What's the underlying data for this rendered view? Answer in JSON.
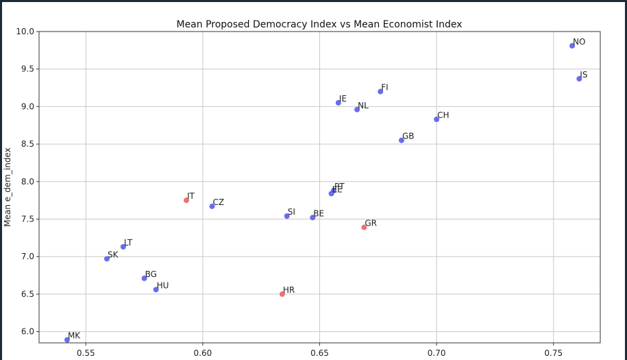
{
  "chart_data": {
    "type": "scatter",
    "title": "Mean Proposed Democracy Index vs Mean Economist Index",
    "xlabel": "",
    "ylabel": "Mean e_dem_index",
    "xlim": [
      0.53,
      0.77
    ],
    "ylim": [
      5.85,
      10.0
    ],
    "xticks": [
      "0.55",
      "0.60",
      "0.65",
      "0.70",
      "0.75"
    ],
    "yticks": [
      "6.0",
      "6.5",
      "7.0",
      "7.5",
      "8.0",
      "8.5",
      "9.0",
      "9.5",
      "10.0"
    ],
    "grid": true,
    "colors": {
      "blue": "#6b6bf0",
      "red": "#f07070"
    },
    "points": [
      {
        "label": "NO",
        "x": 0.758,
        "y": 9.81,
        "color": "blue"
      },
      {
        "label": "IS",
        "x": 0.761,
        "y": 9.37,
        "color": "blue"
      },
      {
        "label": "FI",
        "x": 0.676,
        "y": 9.2,
        "color": "blue"
      },
      {
        "label": "IE",
        "x": 0.658,
        "y": 9.05,
        "color": "blue"
      },
      {
        "label": "NL",
        "x": 0.666,
        "y": 8.96,
        "color": "blue"
      },
      {
        "label": "CH",
        "x": 0.7,
        "y": 8.83,
        "color": "blue"
      },
      {
        "label": "GB",
        "x": 0.685,
        "y": 8.55,
        "color": "blue"
      },
      {
        "label": "PT",
        "x": 0.656,
        "y": 7.88,
        "color": "blue"
      },
      {
        "label": "EE",
        "x": 0.655,
        "y": 7.84,
        "color": "blue"
      },
      {
        "label": "IT",
        "x": 0.593,
        "y": 7.75,
        "color": "red"
      },
      {
        "label": "CZ",
        "x": 0.604,
        "y": 7.67,
        "color": "blue"
      },
      {
        "label": "SI",
        "x": 0.636,
        "y": 7.54,
        "color": "blue"
      },
      {
        "label": "BE",
        "x": 0.647,
        "y": 7.52,
        "color": "blue"
      },
      {
        "label": "GR",
        "x": 0.669,
        "y": 7.39,
        "color": "red"
      },
      {
        "label": "LT",
        "x": 0.566,
        "y": 7.13,
        "color": "blue"
      },
      {
        "label": "SK",
        "x": 0.559,
        "y": 6.97,
        "color": "blue"
      },
      {
        "label": "BG",
        "x": 0.575,
        "y": 6.71,
        "color": "blue"
      },
      {
        "label": "HU",
        "x": 0.58,
        "y": 6.56,
        "color": "blue"
      },
      {
        "label": "HR",
        "x": 0.634,
        "y": 6.5,
        "color": "red"
      },
      {
        "label": "MK",
        "x": 0.542,
        "y": 5.89,
        "color": "blue"
      }
    ]
  }
}
